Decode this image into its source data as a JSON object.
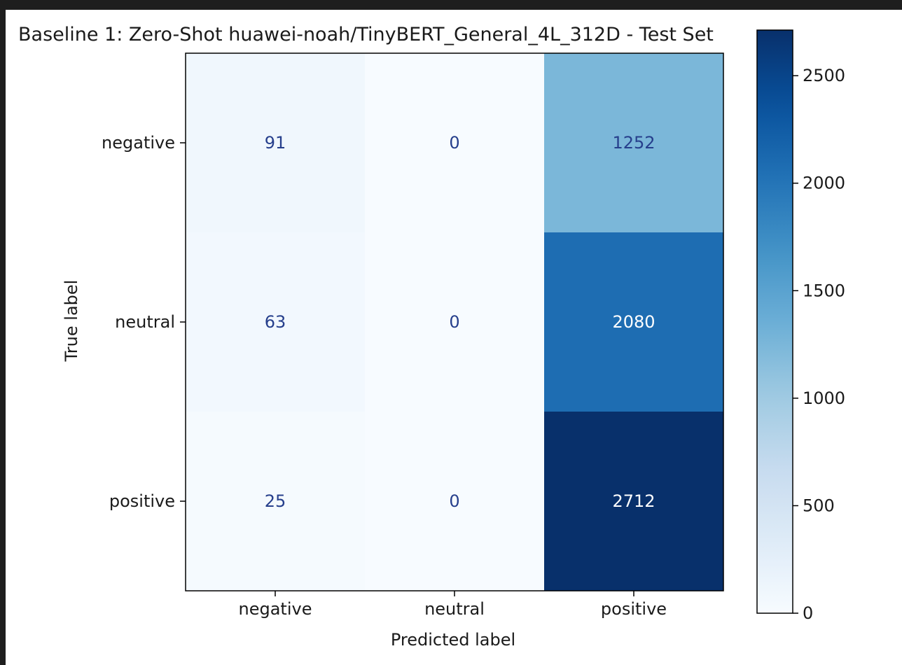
{
  "chart_data": {
    "type": "heatmap",
    "title": "Baseline 1: Zero-Shot huawei-noah/TinyBERT_General_4L_312D - Test Set",
    "xlabel": "Predicted label",
    "ylabel": "True label",
    "x_categories": [
      "negative",
      "neutral",
      "positive"
    ],
    "y_categories": [
      "negative",
      "neutral",
      "positive"
    ],
    "values": [
      [
        91,
        0,
        1252
      ],
      [
        63,
        0,
        2080
      ],
      [
        25,
        0,
        2712
      ]
    ],
    "colormap": "Blues",
    "colorbar": {
      "range": [
        0,
        2712
      ],
      "ticks": [
        0,
        500,
        1000,
        1500,
        2000,
        2500
      ]
    },
    "text_colors": {
      "light_cell": "#263f8c",
      "dark_cell": "#ffffff"
    },
    "grid": false
  }
}
